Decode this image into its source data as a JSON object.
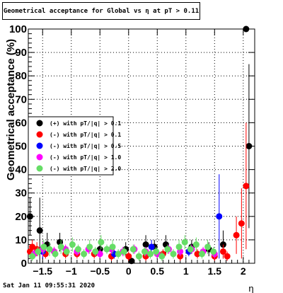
{
  "title": "Geometrical acceptance for Global vs  η at pT > 0.11",
  "footer": {
    "timestamp": "Sat Jan 11 09:55:31 2020"
  },
  "chart_data": {
    "type": "scatter",
    "xlabel": "η",
    "ylabel": "Geometrical acceptance (%)",
    "xlim": [
      -1.75,
      2.2
    ],
    "ylim": [
      0,
      100
    ],
    "x_ticks": [
      -1.5,
      -1,
      -0.5,
      0,
      0.5,
      1,
      1.5,
      2
    ],
    "x_tick_labels": [
      "−1.5",
      "−1",
      "−0.5",
      "0",
      "0.5",
      "1",
      "1.5",
      "2"
    ],
    "y_ticks": [
      0,
      10,
      20,
      30,
      40,
      50,
      60,
      70,
      80,
      90,
      100
    ],
    "y_tick_labels": [
      "0",
      "10",
      "20",
      "30",
      "40",
      "50",
      "60",
      "70",
      "80",
      "90",
      "100"
    ],
    "grid": true,
    "legend_position": "left",
    "series": [
      {
        "name": "(+) with pT/|q| > 0.1",
        "color": "#000000",
        "points": [
          {
            "x": -1.72,
            "y": 20,
            "err": 8
          },
          {
            "x": -1.55,
            "y": 14,
            "err": 14
          },
          {
            "x": -1.42,
            "y": 8,
            "err": 5
          },
          {
            "x": -1.2,
            "y": 9,
            "err": 4
          },
          {
            "x": -0.5,
            "y": 6,
            "err": 3
          },
          {
            "x": -0.05,
            "y": 6,
            "err": 3
          },
          {
            "x": 0.05,
            "y": 1,
            "err": 1
          },
          {
            "x": 0.3,
            "y": 8,
            "err": 4
          },
          {
            "x": 0.45,
            "y": 7,
            "err": 3
          },
          {
            "x": 0.65,
            "y": 8,
            "err": 4
          },
          {
            "x": 1.1,
            "y": 7,
            "err": 3
          },
          {
            "x": 1.4,
            "y": 6,
            "err": 3
          },
          {
            "x": 1.65,
            "y": 8,
            "err": 6
          },
          {
            "x": 2.05,
            "y": 100,
            "err": 0
          },
          {
            "x": 2.1,
            "y": 50,
            "err": 35
          }
        ]
      },
      {
        "name": "(-) with pT/|q| > 0.1",
        "color": "#ff0000",
        "points": [
          {
            "x": -1.72,
            "y": 5,
            "err": 3
          },
          {
            "x": -1.68,
            "y": 7,
            "err": 3
          },
          {
            "x": -1.6,
            "y": 6,
            "err": 3
          },
          {
            "x": -1.45,
            "y": 4,
            "err": 2
          },
          {
            "x": -1.3,
            "y": 5,
            "err": 2
          },
          {
            "x": -1.1,
            "y": 4,
            "err": 2
          },
          {
            "x": -0.9,
            "y": 4,
            "err": 2
          },
          {
            "x": -0.6,
            "y": 4,
            "err": 2
          },
          {
            "x": -0.3,
            "y": 3,
            "err": 2
          },
          {
            "x": 0,
            "y": 3,
            "err": 2
          },
          {
            "x": 0.3,
            "y": 3,
            "err": 2
          },
          {
            "x": 0.6,
            "y": 4,
            "err": 2
          },
          {
            "x": 0.9,
            "y": 3,
            "err": 2
          },
          {
            "x": 1.2,
            "y": 4,
            "err": 2
          },
          {
            "x": 1.5,
            "y": 3,
            "err": 2
          },
          {
            "x": 1.65,
            "y": 5,
            "err": 3
          },
          {
            "x": 1.72,
            "y": 3,
            "err": 2
          },
          {
            "x": 1.88,
            "y": 12,
            "err": 8
          },
          {
            "x": 1.97,
            "y": 17,
            "err": 15
          },
          {
            "x": 2.05,
            "y": 33,
            "err": 27
          }
        ]
      },
      {
        "name": "(-) with pT/|q| > 0.5",
        "color": "#0000ff",
        "points": [
          {
            "x": -1.5,
            "y": 5,
            "err": 3
          },
          {
            "x": -0.25,
            "y": 4,
            "err": 2
          },
          {
            "x": 0.4,
            "y": 7,
            "err": 3
          },
          {
            "x": 1.05,
            "y": 5,
            "err": 2
          },
          {
            "x": 1.58,
            "y": 20,
            "err": 18
          }
        ]
      },
      {
        "name": "(-) with pT/|q| > 1.0",
        "color": "#ff00ff",
        "points": [
          {
            "x": -1.65,
            "y": 4,
            "err": 2
          },
          {
            "x": -1.5,
            "y": 6,
            "err": 3
          },
          {
            "x": -1.3,
            "y": 5,
            "err": 2
          },
          {
            "x": -1.1,
            "y": 6,
            "err": 2
          },
          {
            "x": -0.9,
            "y": 5,
            "err": 2
          },
          {
            "x": -0.7,
            "y": 6,
            "err": 2
          },
          {
            "x": -0.5,
            "y": 4,
            "err": 2
          },
          {
            "x": -0.3,
            "y": 6,
            "err": 2
          },
          {
            "x": -0.1,
            "y": 5,
            "err": 2
          },
          {
            "x": 0.1,
            "y": 6,
            "err": 2
          },
          {
            "x": 0.3,
            "y": 5,
            "err": 2
          },
          {
            "x": 0.5,
            "y": 4,
            "err": 2
          },
          {
            "x": 0.7,
            "y": 6,
            "err": 2
          },
          {
            "x": 0.9,
            "y": 5,
            "err": 2
          },
          {
            "x": 1.1,
            "y": 6,
            "err": 2
          },
          {
            "x": 1.3,
            "y": 5,
            "err": 2
          },
          {
            "x": 1.5,
            "y": 4,
            "err": 2
          }
        ]
      },
      {
        "name": "(-) with pT/|q| > 2.0",
        "color": "#66dd66",
        "points": [
          {
            "x": -1.68,
            "y": 3,
            "err": 2
          },
          {
            "x": -1.58,
            "y": 5,
            "err": 2
          },
          {
            "x": -1.48,
            "y": 7,
            "err": 3
          },
          {
            "x": -1.38,
            "y": 6,
            "err": 3
          },
          {
            "x": -1.28,
            "y": 4,
            "err": 2
          },
          {
            "x": -1.18,
            "y": 7,
            "err": 3
          },
          {
            "x": -1.08,
            "y": 5,
            "err": 2
          },
          {
            "x": -0.98,
            "y": 8,
            "err": 3
          },
          {
            "x": -0.88,
            "y": 6,
            "err": 2
          },
          {
            "x": -0.78,
            "y": 4,
            "err": 2
          },
          {
            "x": -0.68,
            "y": 7,
            "err": 3
          },
          {
            "x": -0.58,
            "y": 5,
            "err": 2
          },
          {
            "x": -0.48,
            "y": 9,
            "err": 3
          },
          {
            "x": -0.38,
            "y": 6,
            "err": 2
          },
          {
            "x": -0.28,
            "y": 7,
            "err": 3
          },
          {
            "x": -0.18,
            "y": 4,
            "err": 2
          },
          {
            "x": -0.08,
            "y": 5,
            "err": 2
          },
          {
            "x": 0.08,
            "y": 6,
            "err": 2
          },
          {
            "x": 0.18,
            "y": 3,
            "err": 2
          },
          {
            "x": 0.28,
            "y": 5,
            "err": 2
          },
          {
            "x": 0.38,
            "y": 4,
            "err": 2
          },
          {
            "x": 0.48,
            "y": 5,
            "err": 2
          },
          {
            "x": 0.58,
            "y": 3,
            "err": 2
          },
          {
            "x": 0.68,
            "y": 6,
            "err": 2
          },
          {
            "x": 0.78,
            "y": 4,
            "err": 2
          },
          {
            "x": 0.88,
            "y": 7,
            "err": 3
          },
          {
            "x": 0.98,
            "y": 9,
            "err": 3
          },
          {
            "x": 1.08,
            "y": 6,
            "err": 2
          },
          {
            "x": 1.18,
            "y": 8,
            "err": 3
          },
          {
            "x": 1.28,
            "y": 4,
            "err": 2
          },
          {
            "x": 1.38,
            "y": 7,
            "err": 3
          },
          {
            "x": 1.48,
            "y": 5,
            "err": 2
          }
        ]
      }
    ]
  }
}
